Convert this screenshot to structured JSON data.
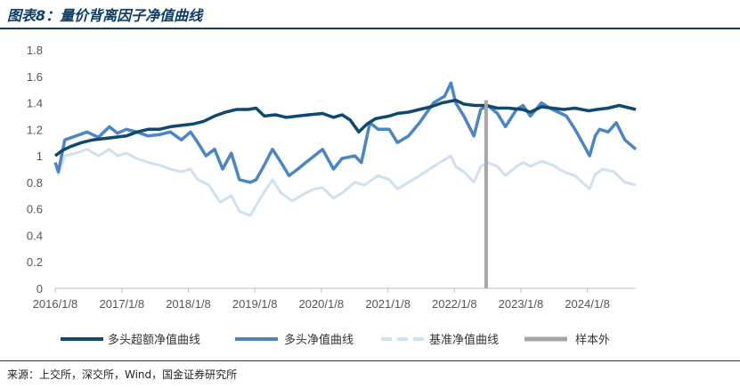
{
  "header": {
    "title": "图表8：量价背离因子净值曲线"
  },
  "footer": {
    "source": "来源：上交所，深交所，Wind，国金证券研究所"
  },
  "chart_data": {
    "type": "line",
    "ylim": [
      0,
      1.8
    ],
    "yticks": [
      "0",
      "0.2",
      "0.4",
      "0.6",
      "0.8",
      "1",
      "1.2",
      "1.4",
      "1.6",
      "1.8"
    ],
    "xticks": [
      "2016/1/8",
      "2017/1/8",
      "2018/1/8",
      "2019/1/8",
      "2020/1/8",
      "2021/1/8",
      "2022/1/8",
      "2023/1/8",
      "2024/1/8"
    ],
    "xrange": [
      "2016/1/8",
      "2024/9/30"
    ],
    "sample_split": "2022/7/1",
    "legend_position": "bottom",
    "colors": {
      "excess": "#0f4a6e",
      "long": "#4a86c5",
      "bench": "#cfe0f1",
      "split": "#a6a6a6"
    },
    "series": [
      {
        "name": "多头超额净值曲线",
        "key": "excess",
        "points": [
          [
            "2016-01-08",
            1.0
          ],
          [
            "2016-02-15",
            1.04
          ],
          [
            "2016-04-01",
            1.07
          ],
          [
            "2016-06-01",
            1.1
          ],
          [
            "2016-08-01",
            1.12
          ],
          [
            "2016-10-01",
            1.13
          ],
          [
            "2016-12-01",
            1.14
          ],
          [
            "2017-02-01",
            1.15
          ],
          [
            "2017-04-01",
            1.18
          ],
          [
            "2017-06-01",
            1.2
          ],
          [
            "2017-08-01",
            1.2
          ],
          [
            "2017-10-01",
            1.22
          ],
          [
            "2017-12-01",
            1.23
          ],
          [
            "2018-02-01",
            1.24
          ],
          [
            "2018-04-01",
            1.26
          ],
          [
            "2018-06-01",
            1.3
          ],
          [
            "2018-08-01",
            1.33
          ],
          [
            "2018-10-01",
            1.35
          ],
          [
            "2018-12-01",
            1.35
          ],
          [
            "2019-01-15",
            1.36
          ],
          [
            "2019-03-01",
            1.3
          ],
          [
            "2019-05-01",
            1.31
          ],
          [
            "2019-07-01",
            1.29
          ],
          [
            "2019-09-01",
            1.3
          ],
          [
            "2019-11-01",
            1.31
          ],
          [
            "2020-01-15",
            1.32
          ],
          [
            "2020-03-15",
            1.29
          ],
          [
            "2020-05-01",
            1.31
          ],
          [
            "2020-06-15",
            1.27
          ],
          [
            "2020-08-01",
            1.18
          ],
          [
            "2020-09-15",
            1.24
          ],
          [
            "2020-11-01",
            1.28
          ],
          [
            "2021-01-15",
            1.3
          ],
          [
            "2021-03-01",
            1.32
          ],
          [
            "2021-05-01",
            1.33
          ],
          [
            "2021-07-01",
            1.35
          ],
          [
            "2021-09-01",
            1.37
          ],
          [
            "2021-11-01",
            1.4
          ],
          [
            "2022-01-15",
            1.42
          ],
          [
            "2022-03-01",
            1.39
          ],
          [
            "2022-05-01",
            1.38
          ],
          [
            "2022-07-01",
            1.38
          ],
          [
            "2022-09-01",
            1.36
          ],
          [
            "2022-11-01",
            1.36
          ],
          [
            "2023-01-15",
            1.35
          ],
          [
            "2023-03-01",
            1.33
          ],
          [
            "2023-05-01",
            1.37
          ],
          [
            "2023-07-01",
            1.36
          ],
          [
            "2023-09-01",
            1.35
          ],
          [
            "2023-11-01",
            1.36
          ],
          [
            "2024-01-15",
            1.34
          ],
          [
            "2024-03-01",
            1.35
          ],
          [
            "2024-05-01",
            1.36
          ],
          [
            "2024-07-01",
            1.38
          ],
          [
            "2024-09-30",
            1.35
          ]
        ]
      },
      {
        "name": "多头净值曲线",
        "key": "long",
        "points": [
          [
            "2016-01-08",
            0.95
          ],
          [
            "2016-01-25",
            0.88
          ],
          [
            "2016-03-01",
            1.12
          ],
          [
            "2016-05-01",
            1.15
          ],
          [
            "2016-07-01",
            1.18
          ],
          [
            "2016-09-01",
            1.14
          ],
          [
            "2016-11-01",
            1.22
          ],
          [
            "2016-12-15",
            1.17
          ],
          [
            "2017-02-01",
            1.2
          ],
          [
            "2017-04-01",
            1.18
          ],
          [
            "2017-06-01",
            1.15
          ],
          [
            "2017-08-01",
            1.16
          ],
          [
            "2017-10-01",
            1.18
          ],
          [
            "2017-12-01",
            1.12
          ],
          [
            "2018-01-20",
            1.18
          ],
          [
            "2018-03-01",
            1.1
          ],
          [
            "2018-04-15",
            1.0
          ],
          [
            "2018-06-01",
            1.05
          ],
          [
            "2018-07-15",
            0.9
          ],
          [
            "2018-09-01",
            1.02
          ],
          [
            "2018-10-15",
            0.82
          ],
          [
            "2018-12-15",
            0.8
          ],
          [
            "2019-01-15",
            0.82
          ],
          [
            "2019-02-25",
            0.92
          ],
          [
            "2019-04-15",
            1.05
          ],
          [
            "2019-06-01",
            0.95
          ],
          [
            "2019-07-15",
            0.85
          ],
          [
            "2019-09-01",
            0.9
          ],
          [
            "2019-10-15",
            0.95
          ],
          [
            "2019-12-01",
            1.0
          ],
          [
            "2020-01-15",
            1.05
          ],
          [
            "2020-03-15",
            0.9
          ],
          [
            "2020-05-01",
            0.98
          ],
          [
            "2020-07-10",
            1.0
          ],
          [
            "2020-08-15",
            0.95
          ],
          [
            "2020-10-01",
            1.25
          ],
          [
            "2020-11-15",
            1.2
          ],
          [
            "2021-01-15",
            1.2
          ],
          [
            "2021-03-01",
            1.1
          ],
          [
            "2021-05-01",
            1.15
          ],
          [
            "2021-07-01",
            1.25
          ],
          [
            "2021-09-15",
            1.4
          ],
          [
            "2021-11-15",
            1.45
          ],
          [
            "2021-12-20",
            1.55
          ],
          [
            "2022-01-15",
            1.4
          ],
          [
            "2022-03-01",
            1.3
          ],
          [
            "2022-04-25",
            1.15
          ],
          [
            "2022-06-01",
            1.35
          ],
          [
            "2022-07-10",
            1.38
          ],
          [
            "2022-09-01",
            1.32
          ],
          [
            "2022-10-15",
            1.22
          ],
          [
            "2022-12-15",
            1.35
          ],
          [
            "2023-01-20",
            1.38
          ],
          [
            "2023-03-01",
            1.3
          ],
          [
            "2023-05-01",
            1.4
          ],
          [
            "2023-06-15",
            1.36
          ],
          [
            "2023-08-01",
            1.33
          ],
          [
            "2023-09-15",
            1.3
          ],
          [
            "2023-11-01",
            1.2
          ],
          [
            "2023-12-20",
            1.08
          ],
          [
            "2024-01-20",
            1.0
          ],
          [
            "2024-02-20",
            1.15
          ],
          [
            "2024-03-15",
            1.2
          ],
          [
            "2024-05-01",
            1.18
          ],
          [
            "2024-06-15",
            1.25
          ],
          [
            "2024-08-01",
            1.12
          ],
          [
            "2024-09-30",
            1.05
          ]
        ]
      },
      {
        "name": "基准净值曲线",
        "key": "bench",
        "points": [
          [
            "2016-01-08",
            0.95
          ],
          [
            "2016-01-25",
            0.86
          ],
          [
            "2016-03-01",
            1.0
          ],
          [
            "2016-05-01",
            1.02
          ],
          [
            "2016-07-01",
            1.05
          ],
          [
            "2016-09-01",
            1.0
          ],
          [
            "2016-11-01",
            1.05
          ],
          [
            "2016-12-15",
            1.0
          ],
          [
            "2017-02-01",
            1.02
          ],
          [
            "2017-04-01",
            0.98
          ],
          [
            "2017-06-01",
            0.95
          ],
          [
            "2017-08-01",
            0.93
          ],
          [
            "2017-10-01",
            0.9
          ],
          [
            "2017-12-01",
            0.88
          ],
          [
            "2018-01-20",
            0.9
          ],
          [
            "2018-03-01",
            0.82
          ],
          [
            "2018-05-01",
            0.78
          ],
          [
            "2018-07-01",
            0.65
          ],
          [
            "2018-09-01",
            0.7
          ],
          [
            "2018-10-15",
            0.58
          ],
          [
            "2018-12-15",
            0.55
          ],
          [
            "2019-02-25",
            0.72
          ],
          [
            "2019-04-15",
            0.82
          ],
          [
            "2019-06-01",
            0.72
          ],
          [
            "2019-08-01",
            0.66
          ],
          [
            "2019-10-15",
            0.72
          ],
          [
            "2019-12-01",
            0.75
          ],
          [
            "2020-01-15",
            0.76
          ],
          [
            "2020-03-15",
            0.68
          ],
          [
            "2020-05-01",
            0.72
          ],
          [
            "2020-07-10",
            0.8
          ],
          [
            "2020-09-01",
            0.78
          ],
          [
            "2020-11-15",
            0.85
          ],
          [
            "2021-01-15",
            0.82
          ],
          [
            "2021-03-01",
            0.75
          ],
          [
            "2021-05-01",
            0.8
          ],
          [
            "2021-07-01",
            0.85
          ],
          [
            "2021-09-15",
            0.92
          ],
          [
            "2021-12-20",
            1.0
          ],
          [
            "2022-01-15",
            0.92
          ],
          [
            "2022-03-01",
            0.88
          ],
          [
            "2022-04-25",
            0.8
          ],
          [
            "2022-06-01",
            0.92
          ],
          [
            "2022-07-10",
            0.95
          ],
          [
            "2022-09-01",
            0.92
          ],
          [
            "2022-10-15",
            0.85
          ],
          [
            "2022-12-15",
            0.92
          ],
          [
            "2023-01-20",
            0.95
          ],
          [
            "2023-03-01",
            0.92
          ],
          [
            "2023-05-01",
            0.96
          ],
          [
            "2023-07-01",
            0.93
          ],
          [
            "2023-09-01",
            0.88
          ],
          [
            "2023-11-01",
            0.85
          ],
          [
            "2024-01-20",
            0.75
          ],
          [
            "2024-02-20",
            0.86
          ],
          [
            "2024-04-01",
            0.9
          ],
          [
            "2024-06-01",
            0.88
          ],
          [
            "2024-08-01",
            0.8
          ],
          [
            "2024-09-30",
            0.78
          ]
        ]
      },
      {
        "name": "样本外",
        "key": "split"
      }
    ]
  }
}
